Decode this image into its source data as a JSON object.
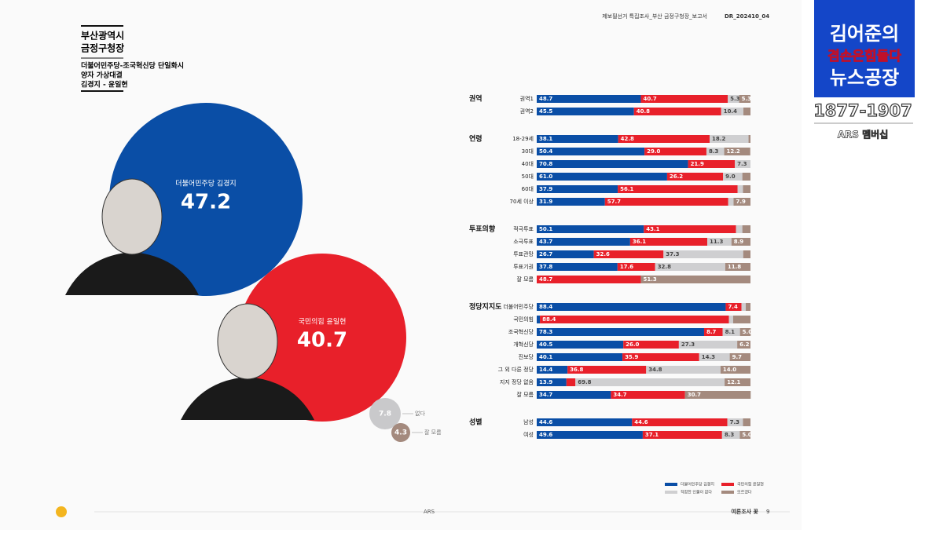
{
  "header": {
    "report": "제보필선거 특집조사_부산 금정구청장_보고서",
    "code": "DR_202410_04"
  },
  "intro": {
    "region": "부산광역시",
    "office": "금정구청장",
    "scenario": "더불어민주당-조국혁신당 단일화시",
    "matchup": "양자 가상대결",
    "names": "김경지 - 윤일현"
  },
  "chart_data": {
    "type": "bubble_stack",
    "bubbles": [
      {
        "name": "더불어민주당 김경지",
        "value": 47.2,
        "color": "#0a4ea6"
      },
      {
        "name": "국민의힘 윤일현",
        "value": 40.7,
        "color": "#e8202a"
      },
      {
        "name": "없다",
        "value": 7.8,
        "color": "#c9c9cb"
      },
      {
        "name": "잘 모름",
        "value": 4.3,
        "color": "#a48a7e"
      }
    ],
    "legend": [
      "더불어민주당 김경지",
      "국민의힘 윤일현",
      "적합한 인물이 없다",
      "모르겠다"
    ],
    "colors": [
      "#0a4ea6",
      "#e8202a",
      "#cfcfd1",
      "#a48a7e"
    ],
    "xlim": [
      0,
      100
    ],
    "groups": [
      {
        "name": "권역",
        "rows": [
          {
            "label": "권역1",
            "values": [
              48.7,
              40.7,
              5.3,
              5.3
            ],
            "value_labels": [
              "48.7",
              "40.7",
              "5.3",
              "5.3"
            ]
          },
          {
            "label": "권역2",
            "values": [
              45.5,
              40.8,
              10.4,
              3.3
            ],
            "value_labels": [
              "45.5",
              "40.8",
              "10.4",
              null
            ]
          }
        ]
      },
      {
        "name": "연령",
        "rows": [
          {
            "label": "18-29세",
            "values": [
              38.1,
              42.8,
              18.2,
              0.9
            ],
            "value_labels": [
              "38.1",
              "42.8",
              "18.2",
              null
            ]
          },
          {
            "label": "30대",
            "values": [
              50.4,
              29.0,
              8.3,
              12.2
            ],
            "value_labels": [
              "50.4",
              "29.0",
              "8.3",
              "12.2"
            ]
          },
          {
            "label": "40대",
            "values": [
              70.8,
              21.9,
              7.3,
              0
            ],
            "value_labels": [
              "70.8",
              "21.9",
              "7.3",
              null
            ]
          },
          {
            "label": "50대",
            "values": [
              61.0,
              26.2,
              9.0,
              3.8
            ],
            "value_labels": [
              "61.0",
              "26.2",
              "9.0",
              null
            ]
          },
          {
            "label": "60대",
            "values": [
              37.9,
              56.1,
              2.5,
              3.5
            ],
            "value_labels": [
              "37.9",
              "56.1",
              null,
              null
            ]
          },
          {
            "label": "70세 이상",
            "values": [
              31.9,
              57.7,
              2.5,
              7.9
            ],
            "value_labels": [
              "31.9",
              "57.7",
              null,
              "7.9"
            ]
          }
        ]
      },
      {
        "name": "투표의향",
        "rows": [
          {
            "label": "적극투표",
            "values": [
              50.1,
              43.1,
              3.0,
              3.8
            ],
            "value_labels": [
              "50.1",
              "43.1",
              null,
              null
            ]
          },
          {
            "label": "소극투표",
            "values": [
              43.7,
              36.1,
              11.3,
              8.9
            ],
            "value_labels": [
              "43.7",
              "36.1",
              "11.3",
              "8.9"
            ]
          },
          {
            "label": "투표관망",
            "values": [
              26.7,
              32.6,
              37.3,
              3.4
            ],
            "value_labels": [
              "26.7",
              "32.6",
              "37.3",
              null
            ]
          },
          {
            "label": "투표기권",
            "values": [
              37.8,
              17.6,
              32.8,
              11.8
            ],
            "value_labels": [
              "37.8",
              "17.6",
              "32.8",
              "11.8"
            ]
          },
          {
            "label": "잘 모름",
            "values": [
              0,
              48.7,
              0,
              51.3
            ],
            "value_labels": [
              null,
              "48.7",
              null,
              "51.3"
            ]
          }
        ]
      },
      {
        "name": "정당지지도",
        "rows": [
          {
            "label": "더불어민주당",
            "values": [
              88.4,
              7.4,
              2.0,
              2.2
            ],
            "value_labels": [
              "88.4",
              "7.4",
              null,
              null
            ]
          },
          {
            "label": "국민의힘",
            "values": [
              1.5,
              88.4,
              2.0,
              8.1
            ],
            "value_labels": [
              null,
              "88.4",
              null,
              null
            ]
          },
          {
            "label": "조국혁신당",
            "values": [
              78.3,
              8.7,
              8.1,
              5.0
            ],
            "value_labels": [
              "78.3",
              "8.7",
              "8.1",
              "5.0"
            ]
          },
          {
            "label": "개혁신당",
            "values": [
              40.5,
              26.0,
              27.3,
              6.2
            ],
            "value_labels": [
              "40.5",
              "26.0",
              "27.3",
              "6.2"
            ]
          },
          {
            "label": "진보당",
            "values": [
              40.1,
              35.9,
              14.3,
              9.7
            ],
            "value_labels": [
              "40.1",
              "35.9",
              "14.3",
              "9.7"
            ]
          },
          {
            "label": "그 외 다른 정당",
            "values": [
              14.4,
              36.8,
              34.8,
              14.0
            ],
            "value_labels": [
              "14.4",
              "36.8",
              "34.8",
              "14.0"
            ]
          },
          {
            "label": "지지 정당 없음",
            "values": [
              13.9,
              4.2,
              69.8,
              12.1
            ],
            "value_labels": [
              "13.9",
              null,
              "69.8",
              "12.1"
            ]
          },
          {
            "label": "잘 모름",
            "values": [
              34.7,
              34.7,
              0,
              30.7
            ],
            "value_labels": [
              "34.7",
              "34.7",
              null,
              "30.7"
            ]
          }
        ]
      },
      {
        "name": "성별",
        "rows": [
          {
            "label": "남성",
            "values": [
              44.6,
              44.6,
              7.3,
              3.5
            ],
            "value_labels": [
              "44.6",
              "44.6",
              "7.3",
              null
            ]
          },
          {
            "label": "여성",
            "values": [
              49.6,
              37.1,
              8.3,
              5.0
            ],
            "value_labels": [
              "49.6",
              "37.1",
              "8.3",
              "5.0"
            ]
          }
        ]
      }
    ]
  },
  "footer": {
    "center": "ARS",
    "brand": "여론조사 꽃",
    "page": "9"
  },
  "overlay": {
    "line1": "김어준의",
    "line2": "겸손은힘들다",
    "line3": "뉴스공장",
    "phone": "1877-1907",
    "membership": "ARS 멤버십"
  }
}
